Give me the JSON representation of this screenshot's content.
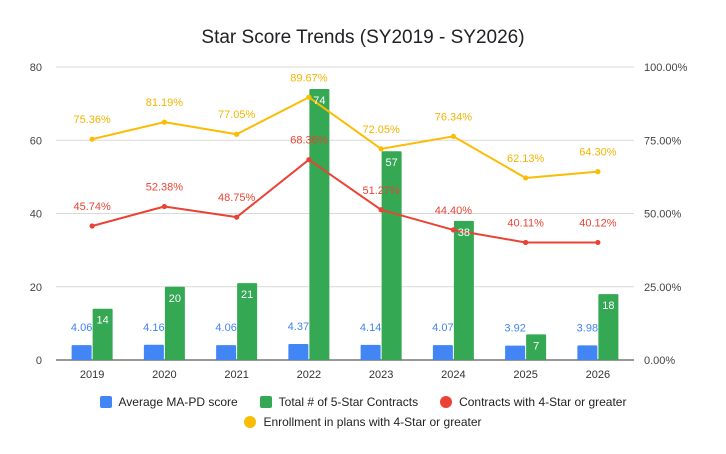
{
  "chart_data": {
    "type": "bar",
    "title": "Star Score Trends (SY2019 - SY2026)",
    "categories": [
      "2019",
      "2020",
      "2021",
      "2022",
      "2023",
      "2024",
      "2025",
      "2026"
    ],
    "left_axis": {
      "min": 0,
      "max": 80,
      "ticks": [
        "0",
        "20",
        "40",
        "60",
        "80"
      ]
    },
    "right_axis": {
      "min": 0,
      "max": 100,
      "ticks": [
        "0.00%",
        "25.00%",
        "50.00%",
        "75.00%",
        "100.00%"
      ]
    },
    "grid": true,
    "legend_position": "bottom",
    "series": [
      {
        "name": "Average MA-PD score",
        "type": "bar",
        "axis": "left",
        "color": "#4285f4",
        "label_color": "#4285f4",
        "values": [
          4.06,
          4.16,
          4.06,
          4.37,
          4.14,
          4.07,
          3.92,
          3.98
        ],
        "labels": [
          "4.06",
          "4.16",
          "4.06",
          "4.37",
          "4.14",
          "4.07",
          "3.92",
          "3.98"
        ]
      },
      {
        "name": "Total # of 5-Star Contracts",
        "type": "bar",
        "axis": "left",
        "color": "#34a853",
        "label_color": "#ffffff",
        "values": [
          14,
          20,
          21,
          74,
          57,
          38,
          7,
          18
        ],
        "labels": [
          "14",
          "20",
          "21",
          "74",
          "57",
          "38",
          "7",
          "18"
        ]
      },
      {
        "name": "Contracts with 4-Star or greater",
        "type": "line",
        "axis": "right",
        "color": "#ea4335",
        "label_color": "#ea4335",
        "values": [
          45.74,
          52.38,
          48.75,
          68.36,
          51.27,
          44.4,
          40.11,
          40.12
        ],
        "labels": [
          "45.74%",
          "52.38%",
          "48.75%",
          "68.36%",
          "51.27%",
          "44.40%",
          "40.11%",
          "40.12%"
        ]
      },
      {
        "name": "Enrollment in plans with 4-Star or greater",
        "type": "line",
        "axis": "right",
        "color": "#fbbc04",
        "label_color": "#f4b400",
        "values": [
          75.36,
          81.19,
          77.05,
          89.67,
          72.05,
          76.34,
          62.13,
          64.3
        ],
        "labels": [
          "75.36%",
          "81.19%",
          "77.05%",
          "89.67%",
          "72.05%",
          "76.34%",
          "62.13%",
          "64.30%"
        ]
      }
    ]
  }
}
